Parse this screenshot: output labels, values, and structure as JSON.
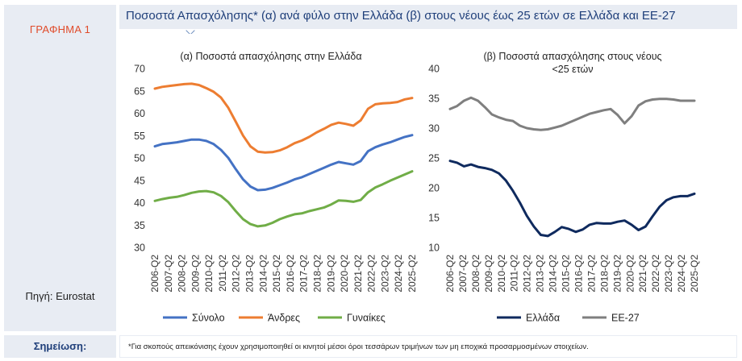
{
  "figure_label": "ΓΡΑΦΗΜΑ 1",
  "title": "Ποσοστά Απασχόλησης* (α) ανά φύλο στην Ελλάδα (β) στους νέους έως 25 ετών σε Ελλάδα και ΕΕ-27",
  "source": "Πηγή: Eurostat",
  "note_label": "Σημείωση:",
  "note_text": "*Για σκοπούς απεικόνισης έχουν χρησιμοποιηθεί οι κινητοί μέσοι όροι τεσσάρων τριμήνων των μη εποχικά προσαρμοσμένων στοιχείων.",
  "colors": {
    "total": "#4472c4",
    "men": "#ed7d31",
    "women": "#70ad47",
    "greece": "#0f2a5e",
    "eu27": "#7f7f7f"
  },
  "chart_data": [
    {
      "type": "line",
      "title": "(α) Ποσοστά απασχόλησης στην Ελλάδα",
      "xlabel": "",
      "ylabel": "",
      "ylim": [
        30,
        70
      ],
      "yticks": [
        "30",
        "35",
        "40",
        "45",
        "50",
        "55",
        "60",
        "65",
        "70"
      ],
      "x_tick_labels": [
        "2006-Q2",
        "2007-Q2",
        "2008-Q2",
        "2009-Q2",
        "2010-Q2",
        "2011-Q2",
        "2012-Q2",
        "2013-Q2",
        "2014-Q2",
        "2015-Q2",
        "2016-Q2",
        "2017-Q2",
        "2018-Q2",
        "2019-Q2",
        "2020-Q2",
        "2021-Q2",
        "2022-Q2",
        "2023-Q2",
        "2024-Q2",
        "2025-Q2"
      ],
      "grid": false,
      "legend": "bottom",
      "series": [
        {
          "name": "Σύνολο",
          "color": "#4472c4",
          "values": [
            52.6,
            53.1,
            53.3,
            53.5,
            53.8,
            54.1,
            54.1,
            53.8,
            53.1,
            51.8,
            50.0,
            47.5,
            45.2,
            43.6,
            42.8,
            42.9,
            43.3,
            43.9,
            44.5,
            45.2,
            45.7,
            46.4,
            47.1,
            47.8,
            48.5,
            49.1,
            48.8,
            48.5,
            49.3,
            51.5,
            52.4,
            53.0,
            53.5,
            54.1,
            54.7,
            55.1
          ]
        },
        {
          "name": "Άνδρες",
          "color": "#ed7d31",
          "values": [
            65.5,
            65.9,
            66.1,
            66.3,
            66.5,
            66.6,
            66.3,
            65.6,
            64.8,
            63.5,
            61.2,
            58.1,
            55.0,
            52.6,
            51.4,
            51.2,
            51.3,
            51.7,
            52.4,
            53.3,
            53.9,
            54.7,
            55.7,
            56.5,
            57.4,
            57.9,
            57.6,
            57.2,
            58.4,
            61.0,
            62.0,
            62.2,
            62.3,
            62.5,
            63.1,
            63.4
          ]
        },
        {
          "name": "Γυναίκες",
          "color": "#70ad47",
          "values": [
            40.4,
            40.8,
            41.1,
            41.3,
            41.7,
            42.2,
            42.5,
            42.6,
            42.3,
            41.5,
            40.1,
            38.1,
            36.3,
            35.2,
            34.7,
            34.9,
            35.5,
            36.3,
            36.9,
            37.4,
            37.6,
            38.1,
            38.5,
            38.9,
            39.6,
            40.5,
            40.4,
            40.2,
            40.6,
            42.3,
            43.4,
            44.1,
            44.9,
            45.6,
            46.3,
            47.0
          ]
        }
      ]
    },
    {
      "type": "line",
      "title_lines": [
        "(β) Ποσοστά απασχόλησης στους νέους",
        "<25 ετών"
      ],
      "xlabel": "",
      "ylabel": "",
      "ylim": [
        10,
        40
      ],
      "yticks": [
        "10",
        "15",
        "20",
        "25",
        "30",
        "35",
        "40"
      ],
      "x_tick_labels": [
        "2006-Q2",
        "2007-Q2",
        "2008-Q2",
        "2009-Q2",
        "2010-Q2",
        "2011-Q2",
        "2012-Q2",
        "2013-Q2",
        "2014-Q2",
        "2015-Q2",
        "2016-Q2",
        "2017-Q2",
        "2018-Q2",
        "2019-Q2",
        "2020-Q2",
        "2021-Q2",
        "2022-Q2",
        "2023-Q2",
        "2024-Q2",
        "2025-Q2"
      ],
      "grid": false,
      "legend": "bottom",
      "series": [
        {
          "name": "Ελλάδα",
          "color": "#0f2a5e",
          "values": [
            24.5,
            24.2,
            23.6,
            23.9,
            23.5,
            23.3,
            23.0,
            22.4,
            21.2,
            19.5,
            17.5,
            15.3,
            13.5,
            12.1,
            11.9,
            12.6,
            13.4,
            13.1,
            12.6,
            13.0,
            13.8,
            14.1,
            14.0,
            14.0,
            14.3,
            14.5,
            13.8,
            12.9,
            13.5,
            15.2,
            16.8,
            17.9,
            18.4,
            18.6,
            18.6,
            19.0
          ]
        },
        {
          "name": "ΕΕ-27",
          "color": "#7f7f7f",
          "values": [
            33.2,
            33.7,
            34.6,
            35.1,
            34.6,
            33.5,
            32.3,
            31.8,
            31.4,
            31.2,
            30.4,
            30.0,
            29.8,
            29.7,
            29.8,
            30.1,
            30.4,
            30.9,
            31.4,
            31.9,
            32.4,
            32.7,
            33.0,
            33.2,
            32.2,
            30.8,
            32.0,
            33.8,
            34.5,
            34.8,
            34.9,
            34.9,
            34.8,
            34.6,
            34.6,
            34.6
          ]
        }
      ]
    }
  ]
}
